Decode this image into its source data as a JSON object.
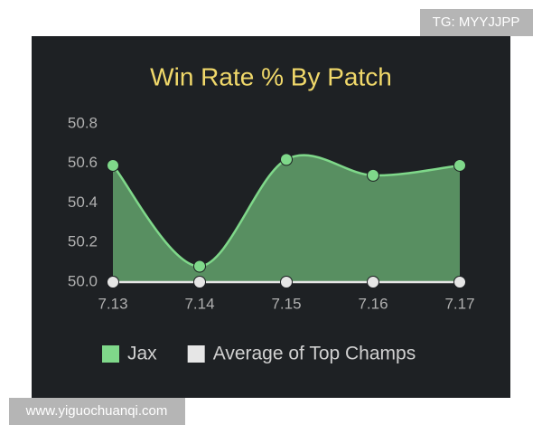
{
  "chart_data": {
    "type": "area",
    "title": "Win Rate % By Patch",
    "categories": [
      "7.13",
      "7.14",
      "7.15",
      "7.16",
      "7.17"
    ],
    "series": [
      {
        "name": "Jax",
        "color": "#7fd88a",
        "values": [
          50.59,
          50.08,
          50.62,
          50.54,
          50.59
        ]
      },
      {
        "name": "Average of Top Champs",
        "color": "#e6e6e6",
        "values": [
          50,
          50,
          50,
          50,
          50
        ]
      }
    ],
    "ylim": [
      50,
      50.8
    ],
    "yticks": [
      {
        "value": 50,
        "label": "50.0"
      },
      50.2,
      50.4,
      50.6,
      50.8
    ],
    "grid": false,
    "legend": "bottom"
  },
  "watermarks": {
    "top_right": "TG: MYYJJPP",
    "bottom_left": "www.yiguochuanqi.com"
  }
}
